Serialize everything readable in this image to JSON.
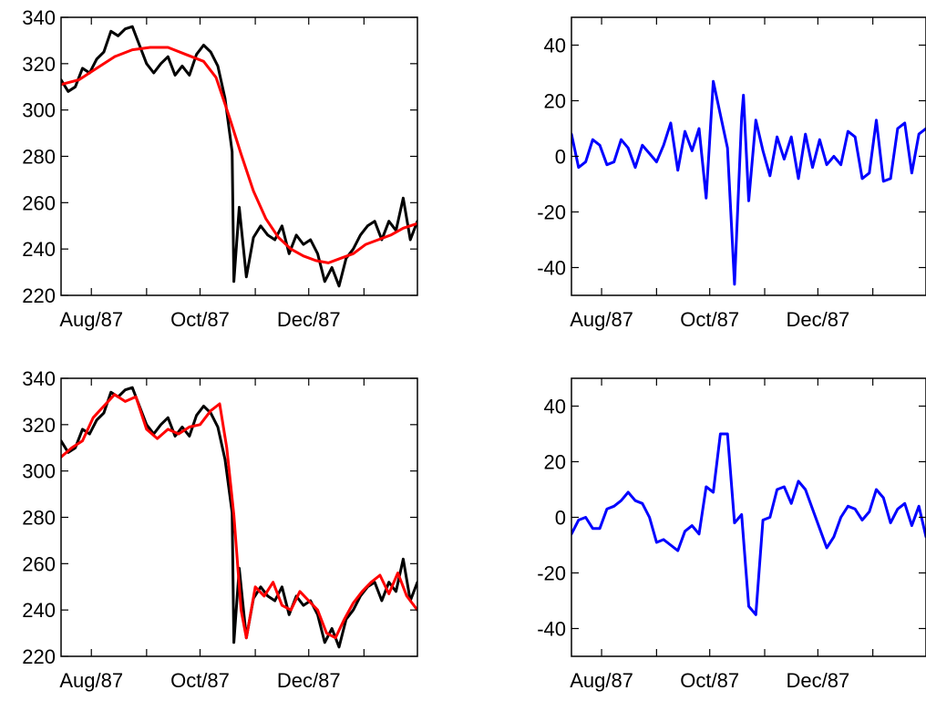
{
  "chart_data": [
    {
      "type": "line",
      "panel": "top-left",
      "title": "",
      "xlabel": "",
      "ylabel": "",
      "x_ticks": [
        {
          "label": "Aug/87",
          "date": "1987-08-01"
        },
        {
          "label": "Oct/87",
          "date": "1987-10-01"
        },
        {
          "label": "Dec/87",
          "date": "1987-12-01"
        }
      ],
      "xlim": [
        "1987-07-15",
        "1988-01-31"
      ],
      "ylim": [
        220,
        340
      ],
      "y_ticks": [
        220,
        240,
        260,
        280,
        300,
        320,
        340
      ],
      "series": [
        {
          "color": "#000000",
          "x": [
            "1987-07-15",
            "1987-07-19",
            "1987-07-23",
            "1987-07-27",
            "1987-07-31",
            "1987-08-04",
            "1987-08-08",
            "1987-08-12",
            "1987-08-16",
            "1987-08-20",
            "1987-08-24",
            "1987-08-28",
            "1987-09-01",
            "1987-09-05",
            "1987-09-09",
            "1987-09-13",
            "1987-09-17",
            "1987-09-21",
            "1987-09-25",
            "1987-09-29",
            "1987-10-03",
            "1987-10-07",
            "1987-10-11",
            "1987-10-15",
            "1987-10-19",
            "1987-10-20",
            "1987-10-23",
            "1987-10-27",
            "1987-10-31",
            "1987-11-04",
            "1987-11-08",
            "1987-11-12",
            "1987-11-16",
            "1987-11-20",
            "1987-11-24",
            "1987-11-28",
            "1987-12-02",
            "1987-12-06",
            "1987-12-10",
            "1987-12-14",
            "1987-12-18",
            "1987-12-22",
            "1987-12-26",
            "1987-12-30",
            "1988-01-03",
            "1988-01-07",
            "1988-01-11",
            "1988-01-15",
            "1988-01-19",
            "1988-01-23",
            "1988-01-27",
            "1988-01-31"
          ],
          "values": [
            313,
            308,
            310,
            318,
            316,
            322,
            325,
            334,
            332,
            335,
            336,
            328,
            320,
            316,
            320,
            323,
            315,
            319,
            315,
            324,
            328,
            325,
            319,
            305,
            282,
            226,
            258,
            228,
            245,
            250,
            246,
            244,
            250,
            238,
            246,
            242,
            244,
            238,
            226,
            232,
            224,
            236,
            240,
            246,
            250,
            252,
            244,
            252,
            248,
            262,
            244,
            252
          ]
        },
        {
          "color": "#ff0000",
          "x": [
            "1987-07-15",
            "1987-07-25",
            "1987-08-04",
            "1987-08-14",
            "1987-08-24",
            "1987-09-03",
            "1987-09-13",
            "1987-09-23",
            "1987-10-03",
            "1987-10-10",
            "1987-10-17",
            "1987-10-24",
            "1987-10-31",
            "1987-11-07",
            "1987-11-14",
            "1987-11-21",
            "1987-11-28",
            "1987-12-05",
            "1987-12-12",
            "1987-12-19",
            "1987-12-26",
            "1988-01-02",
            "1988-01-09",
            "1988-01-16",
            "1988-01-23",
            "1988-01-31"
          ],
          "values": [
            311,
            313,
            318,
            323,
            326,
            327,
            327,
            324,
            321,
            314,
            298,
            281,
            265,
            253,
            245,
            240,
            237,
            235,
            234,
            236,
            238,
            242,
            244,
            246,
            249,
            251
          ]
        }
      ]
    },
    {
      "type": "line",
      "panel": "top-right",
      "title": "",
      "xlabel": "",
      "ylabel": "",
      "x_ticks": [
        {
          "label": "Aug/87",
          "date": "1987-08-01"
        },
        {
          "label": "Oct/87",
          "date": "1987-10-01"
        },
        {
          "label": "Dec/87",
          "date": "1987-12-01"
        }
      ],
      "xlim": [
        "1987-07-15",
        "1988-01-31"
      ],
      "ylim": [
        -50,
        50
      ],
      "y_ticks": [
        -40,
        -20,
        0,
        20,
        40
      ],
      "series": [
        {
          "color": "#0000ff",
          "x": [
            "1987-07-15",
            "1987-07-19",
            "1987-07-23",
            "1987-07-27",
            "1987-07-31",
            "1987-08-04",
            "1987-08-08",
            "1987-08-12",
            "1987-08-16",
            "1987-08-20",
            "1987-08-24",
            "1987-08-28",
            "1987-09-01",
            "1987-09-05",
            "1987-09-09",
            "1987-09-13",
            "1987-09-17",
            "1987-09-21",
            "1987-09-25",
            "1987-09-29",
            "1987-10-03",
            "1987-10-07",
            "1987-10-11",
            "1987-10-15",
            "1987-10-19",
            "1987-10-20",
            "1987-10-23",
            "1987-10-27",
            "1987-10-31",
            "1987-11-04",
            "1987-11-08",
            "1987-11-12",
            "1987-11-16",
            "1987-11-20",
            "1987-11-24",
            "1987-11-28",
            "1987-12-02",
            "1987-12-06",
            "1987-12-10",
            "1987-12-14",
            "1987-12-18",
            "1987-12-22",
            "1987-12-26",
            "1987-12-30",
            "1988-01-03",
            "1988-01-07",
            "1988-01-11",
            "1988-01-15",
            "1988-01-19",
            "1988-01-23",
            "1988-01-27",
            "1988-01-31"
          ],
          "values": [
            8,
            -4,
            -2,
            6,
            4,
            -3,
            -2,
            6,
            3,
            -4,
            4,
            1,
            -2,
            4,
            12,
            -5,
            9,
            2,
            10,
            -15,
            27,
            15,
            3,
            -46,
            14,
            22,
            -16,
            13,
            2,
            -7,
            7,
            -1,
            7,
            -8,
            8,
            -4,
            6,
            -3,
            0,
            -3,
            9,
            7,
            -8,
            -6,
            13,
            -9,
            -8,
            10,
            12,
            -6,
            8,
            10
          ]
        }
      ]
    },
    {
      "type": "line",
      "panel": "bottom-left",
      "title": "",
      "xlabel": "",
      "ylabel": "",
      "x_ticks": [
        {
          "label": "Aug/87",
          "date": "1987-08-01"
        },
        {
          "label": "Oct/87",
          "date": "1987-10-01"
        },
        {
          "label": "Dec/87",
          "date": "1987-12-01"
        }
      ],
      "xlim": [
        "1987-07-15",
        "1988-01-31"
      ],
      "ylim": [
        220,
        340
      ],
      "y_ticks": [
        220,
        240,
        260,
        280,
        300,
        320,
        340
      ],
      "series": [
        {
          "color": "#000000",
          "x": [
            "1987-07-15",
            "1987-07-19",
            "1987-07-23",
            "1987-07-27",
            "1987-07-31",
            "1987-08-04",
            "1987-08-08",
            "1987-08-12",
            "1987-08-16",
            "1987-08-20",
            "1987-08-24",
            "1987-08-28",
            "1987-09-01",
            "1987-09-05",
            "1987-09-09",
            "1987-09-13",
            "1987-09-17",
            "1987-09-21",
            "1987-09-25",
            "1987-09-29",
            "1987-10-03",
            "1987-10-07",
            "1987-10-11",
            "1987-10-15",
            "1987-10-19",
            "1987-10-20",
            "1987-10-23",
            "1987-10-27",
            "1987-10-31",
            "1987-11-04",
            "1987-11-08",
            "1987-11-12",
            "1987-11-16",
            "1987-11-20",
            "1987-11-24",
            "1987-11-28",
            "1987-12-02",
            "1987-12-06",
            "1987-12-10",
            "1987-12-14",
            "1987-12-18",
            "1987-12-22",
            "1987-12-26",
            "1987-12-30",
            "1988-01-03",
            "1988-01-07",
            "1988-01-11",
            "1988-01-15",
            "1988-01-19",
            "1988-01-23",
            "1988-01-27",
            "1988-01-31"
          ],
          "values": [
            313,
            308,
            310,
            318,
            316,
            322,
            325,
            334,
            332,
            335,
            336,
            328,
            320,
            316,
            320,
            323,
            315,
            319,
            315,
            324,
            328,
            325,
            319,
            305,
            282,
            226,
            258,
            228,
            245,
            250,
            246,
            244,
            250,
            238,
            246,
            242,
            244,
            238,
            226,
            232,
            224,
            236,
            240,
            246,
            250,
            252,
            244,
            252,
            248,
            262,
            244,
            252
          ]
        },
        {
          "color": "#ff0000",
          "x": [
            "1987-07-15",
            "1987-07-21",
            "1987-07-27",
            "1987-08-02",
            "1987-08-08",
            "1987-08-14",
            "1987-08-20",
            "1987-08-26",
            "1987-09-01",
            "1987-09-07",
            "1987-09-13",
            "1987-09-19",
            "1987-09-25",
            "1987-10-01",
            "1987-10-07",
            "1987-10-12",
            "1987-10-16",
            "1987-10-20",
            "1987-10-24",
            "1987-10-27",
            "1987-11-01",
            "1987-11-06",
            "1987-11-11",
            "1987-11-16",
            "1987-11-21",
            "1987-11-26",
            "1987-12-01",
            "1987-12-06",
            "1987-12-11",
            "1987-12-16",
            "1987-12-21",
            "1987-12-26",
            "1987-12-31",
            "1988-01-05",
            "1988-01-10",
            "1988-01-15",
            "1988-01-20",
            "1988-01-25",
            "1988-01-31"
          ],
          "values": [
            306,
            310,
            313,
            323,
            328,
            333,
            330,
            332,
            318,
            314,
            318,
            316,
            319,
            320,
            326,
            329,
            310,
            281,
            240,
            228,
            250,
            246,
            252,
            242,
            240,
            248,
            244,
            240,
            230,
            228,
            236,
            243,
            248,
            252,
            255,
            247,
            256,
            246,
            240
          ]
        }
      ]
    },
    {
      "type": "line",
      "panel": "bottom-right",
      "title": "",
      "xlabel": "",
      "ylabel": "",
      "x_ticks": [
        {
          "label": "Aug/87",
          "date": "1987-08-01"
        },
        {
          "label": "Oct/87",
          "date": "1987-10-01"
        },
        {
          "label": "Dec/87",
          "date": "1987-12-01"
        }
      ],
      "xlim": [
        "1987-07-15",
        "1988-01-31"
      ],
      "ylim": [
        -50,
        50
      ],
      "y_ticks": [
        -40,
        -20,
        0,
        20,
        40
      ],
      "series": [
        {
          "color": "#0000ff",
          "x": [
            "1987-07-15",
            "1987-07-19",
            "1987-07-23",
            "1987-07-27",
            "1987-07-31",
            "1987-08-04",
            "1987-08-08",
            "1987-08-12",
            "1987-08-16",
            "1987-08-20",
            "1987-08-24",
            "1987-08-28",
            "1987-09-01",
            "1987-09-05",
            "1987-09-09",
            "1987-09-13",
            "1987-09-17",
            "1987-09-21",
            "1987-09-25",
            "1987-09-29",
            "1987-10-03",
            "1987-10-07",
            "1987-10-11",
            "1987-10-15",
            "1987-10-19",
            "1987-10-23",
            "1987-10-27",
            "1987-10-31",
            "1987-11-04",
            "1987-11-08",
            "1987-11-12",
            "1987-11-16",
            "1987-11-20",
            "1987-11-24",
            "1987-11-28",
            "1987-12-02",
            "1987-12-06",
            "1987-12-10",
            "1987-12-14",
            "1987-12-18",
            "1987-12-22",
            "1987-12-26",
            "1987-12-30",
            "1988-01-03",
            "1988-01-07",
            "1988-01-11",
            "1988-01-15",
            "1988-01-19",
            "1988-01-23",
            "1988-01-27",
            "1988-01-31"
          ],
          "values": [
            -6,
            -1,
            0,
            -4,
            -4,
            3,
            4,
            6,
            9,
            6,
            5,
            0,
            -9,
            -8,
            -10,
            -12,
            -5,
            -3,
            -6,
            11,
            9,
            30,
            30,
            -2,
            1,
            -32,
            -35,
            -1,
            0,
            10,
            11,
            5,
            13,
            10,
            3,
            -4,
            -11,
            -7,
            0,
            4,
            3,
            -1,
            2,
            10,
            7,
            -2,
            3,
            5,
            -3,
            4,
            -7
          ]
        }
      ]
    }
  ]
}
